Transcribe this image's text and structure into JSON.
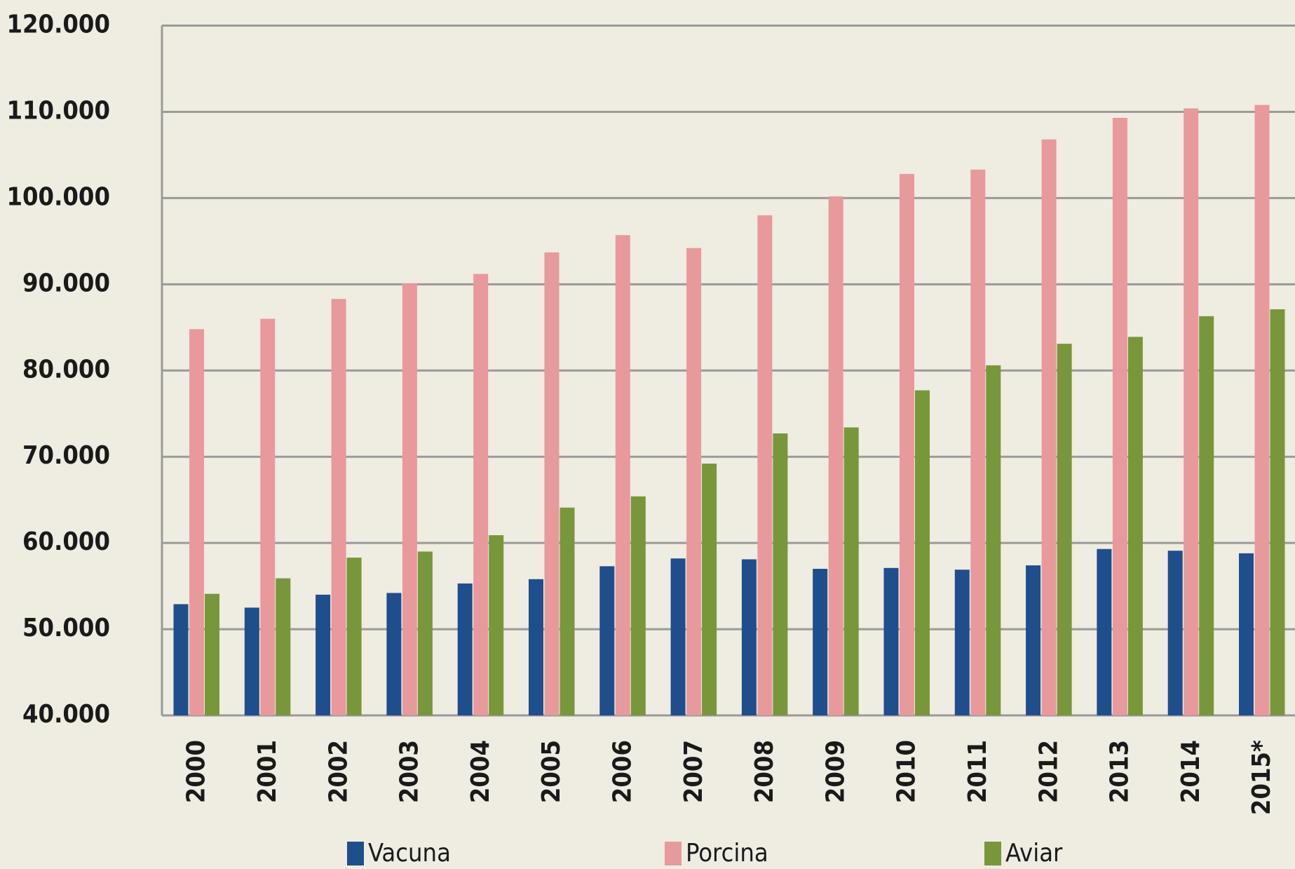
{
  "chart_data": {
    "type": "bar",
    "categories": [
      "2000",
      "2001",
      "2002",
      "2003",
      "2004",
      "2005",
      "2006",
      "2007",
      "2008",
      "2009",
      "2010",
      "2011",
      "2012",
      "2013",
      "2014",
      "2015*"
    ],
    "series": [
      {
        "name": "Vacuna",
        "color": "#1f4e8c",
        "values": [
          52900,
          52500,
          54000,
          54200,
          55300,
          55800,
          57300,
          58200,
          58100,
          57000,
          57100,
          56900,
          57400,
          59300,
          59100,
          58800
        ]
      },
      {
        "name": "Porcina",
        "color": "#e8999b",
        "values": [
          84800,
          86000,
          88300,
          90100,
          91200,
          93700,
          95700,
          94200,
          98000,
          100200,
          102800,
          103300,
          106800,
          109300,
          110400,
          110800
        ]
      },
      {
        "name": "Aviar",
        "color": "#77973a",
        "values": [
          54100,
          55900,
          58300,
          59000,
          60900,
          64100,
          65400,
          69200,
          72700,
          73400,
          77700,
          80600,
          83100,
          83900,
          86300,
          87100
        ]
      }
    ],
    "ylim": [
      40000,
      120000
    ],
    "yticks": [
      {
        "value": 40000,
        "label": "40.000"
      },
      {
        "value": 50000,
        "label": "50.000"
      },
      {
        "value": 60000,
        "label": "60.000"
      },
      {
        "value": 70000,
        "label": "70.000"
      },
      {
        "value": 80000,
        "label": "80.000"
      },
      {
        "value": 90000,
        "label": "90.000"
      },
      {
        "value": 100000,
        "label": "100.000"
      },
      {
        "value": 110000,
        "label": "110.000"
      },
      {
        "value": 120000,
        "label": "120.000"
      }
    ],
    "grid": true,
    "legend": "bottom"
  }
}
